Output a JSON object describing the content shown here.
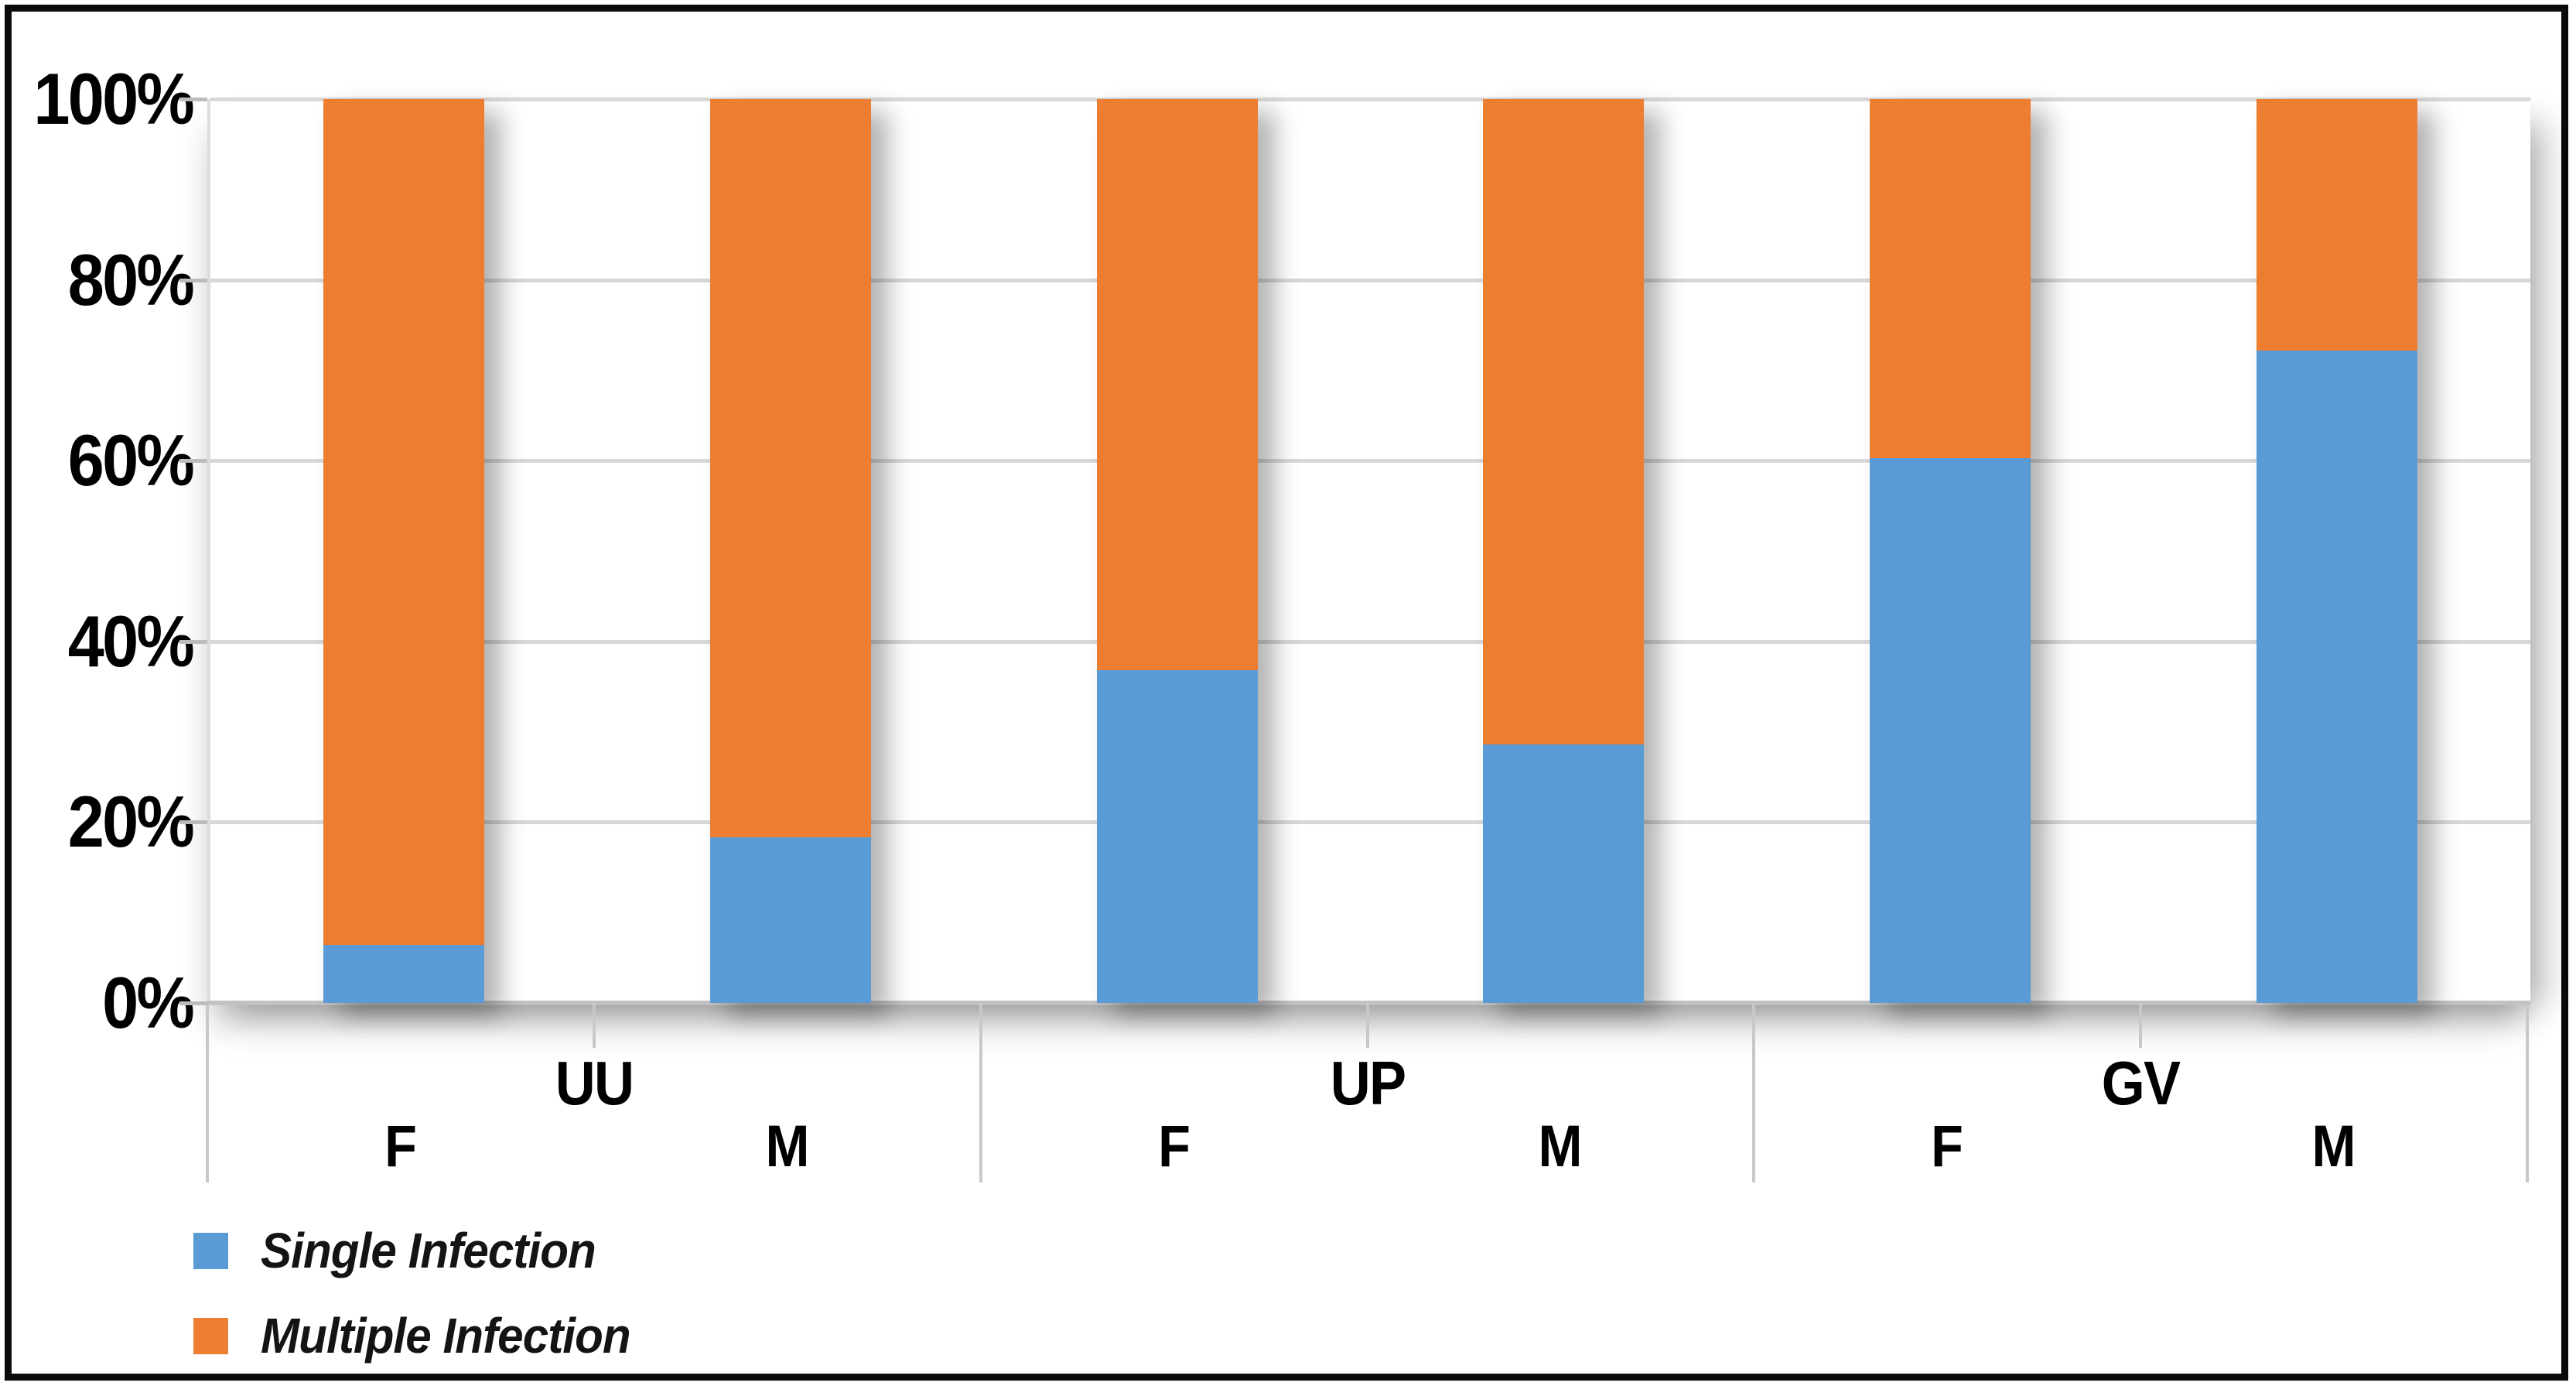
{
  "chart_data": {
    "type": "bar",
    "subtype": "100-percent-stacked-column",
    "title": "",
    "xlabel": "",
    "ylabel": "",
    "groups": [
      "UU",
      "UP",
      "GV"
    ],
    "categories": [
      "F",
      "M",
      "F",
      "M",
      "F",
      "M"
    ],
    "category_groups": [
      "UU",
      "UU",
      "UP",
      "UP",
      "GV",
      "GV"
    ],
    "series": [
      {
        "name": "Single Infection",
        "color": "#5B9BD5",
        "values": [
          6.4,
          18.3,
          36.8,
          28.6,
          60.3,
          72.2
        ]
      },
      {
        "name": "Multiple Infection",
        "color": "#ED7D31",
        "values": [
          93.6,
          81.7,
          63.2,
          71.4,
          39.7,
          27.8
        ]
      }
    ],
    "ylim": [
      0,
      100
    ],
    "y_ticks": [
      "0%",
      "20%",
      "40%",
      "60%",
      "80%",
      "100%"
    ],
    "grid": true,
    "legend_position": "bottom-left",
    "legend": {
      "entries": [
        {
          "label": "Single Infection",
          "color": "#5B9BD5"
        },
        {
          "label": "Multiple Infection",
          "color": "#ED7D31"
        }
      ]
    }
  },
  "styles": {
    "background": "#ffffff",
    "frame_color": "#0a0a0a",
    "grid_color": "#d8d8d8",
    "axis_color": "#c2c2c2",
    "divider_color": "#c8c8c8",
    "text_color": "#000000"
  }
}
